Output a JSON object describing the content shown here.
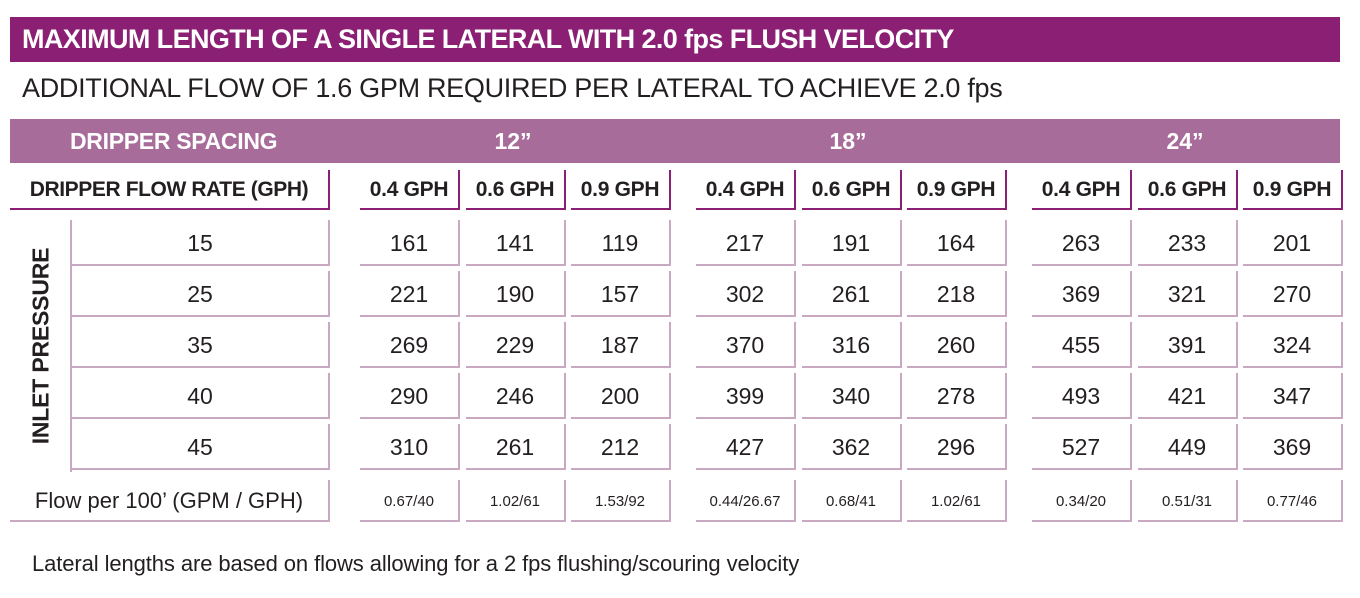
{
  "title": "MAXIMUM LENGTH OF A SINGLE LATERAL WITH 2.0 fps FLUSH VELOCITY",
  "subtitle": "ADDITIONAL FLOW OF 1.6 GPM REQUIRED PER LATERAL TO ACHIEVE 2.0 fps",
  "header_colors": {
    "title_bar": "#8a1f73",
    "spacing_bar": "#a86c9b",
    "rule": "#c9a9c1"
  },
  "table": {
    "spacing_label": "DRIPPER SPACING",
    "spacings": [
      "12”",
      "18”",
      "24”"
    ],
    "flow_rate_label": "DRIPPER FLOW RATE (GPH)",
    "flow_rates": [
      "0.4 GPH",
      "0.6 GPH",
      "0.9 GPH"
    ],
    "pressure_label": "INLET PRESSURE",
    "rows": [
      {
        "pressure": "15",
        "values": [
          "161",
          "141",
          "119",
          "217",
          "191",
          "164",
          "263",
          "233",
          "201"
        ]
      },
      {
        "pressure": "25",
        "values": [
          "221",
          "190",
          "157",
          "302",
          "261",
          "218",
          "369",
          "321",
          "270"
        ]
      },
      {
        "pressure": "35",
        "values": [
          "269",
          "229",
          "187",
          "370",
          "316",
          "260",
          "455",
          "391",
          "324"
        ]
      },
      {
        "pressure": "40",
        "values": [
          "290",
          "246",
          "200",
          "399",
          "340",
          "278",
          "493",
          "421",
          "347"
        ]
      },
      {
        "pressure": "45",
        "values": [
          "310",
          "261",
          "212",
          "427",
          "362",
          "296",
          "527",
          "449",
          "369"
        ]
      }
    ],
    "flow_per_label": "Flow per 100’ (GPM / GPH)",
    "flow_per": [
      "0.67/40",
      "1.02/61",
      "1.53/92",
      "0.44/26.67",
      "0.68/41",
      "1.02/61",
      "0.34/20",
      "0.51/31",
      "0.77/46"
    ]
  },
  "footnote": "Lateral lengths are based on flows allowing for a 2 fps flushing/scouring velocity"
}
